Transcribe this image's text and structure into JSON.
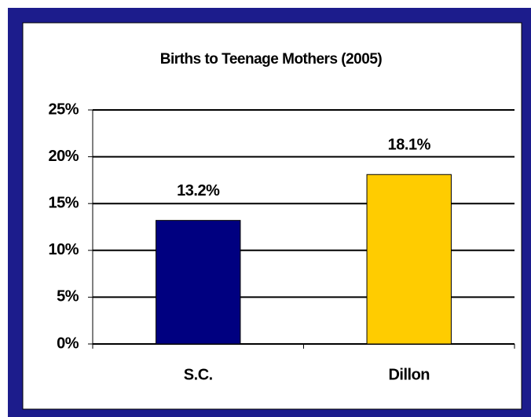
{
  "chart_data": {
    "type": "bar",
    "title": "Births to Teenage Mothers (2005)",
    "categories": [
      "S.C.",
      "Dillon"
    ],
    "values": [
      13.2,
      18.1
    ],
    "value_labels": [
      "13.2%",
      "18.1%"
    ],
    "colors": [
      "#000080",
      "#ffcc00"
    ],
    "ylim": [
      0,
      25
    ],
    "yticks": [
      {
        "value": 0,
        "label": "0%"
      },
      {
        "value": 5,
        "label": "5%"
      },
      {
        "value": 10,
        "label": "10%"
      },
      {
        "value": 15,
        "label": "15%"
      },
      {
        "value": 20,
        "label": "20%"
      },
      {
        "value": 25,
        "label": "25%"
      }
    ],
    "grid": true
  }
}
